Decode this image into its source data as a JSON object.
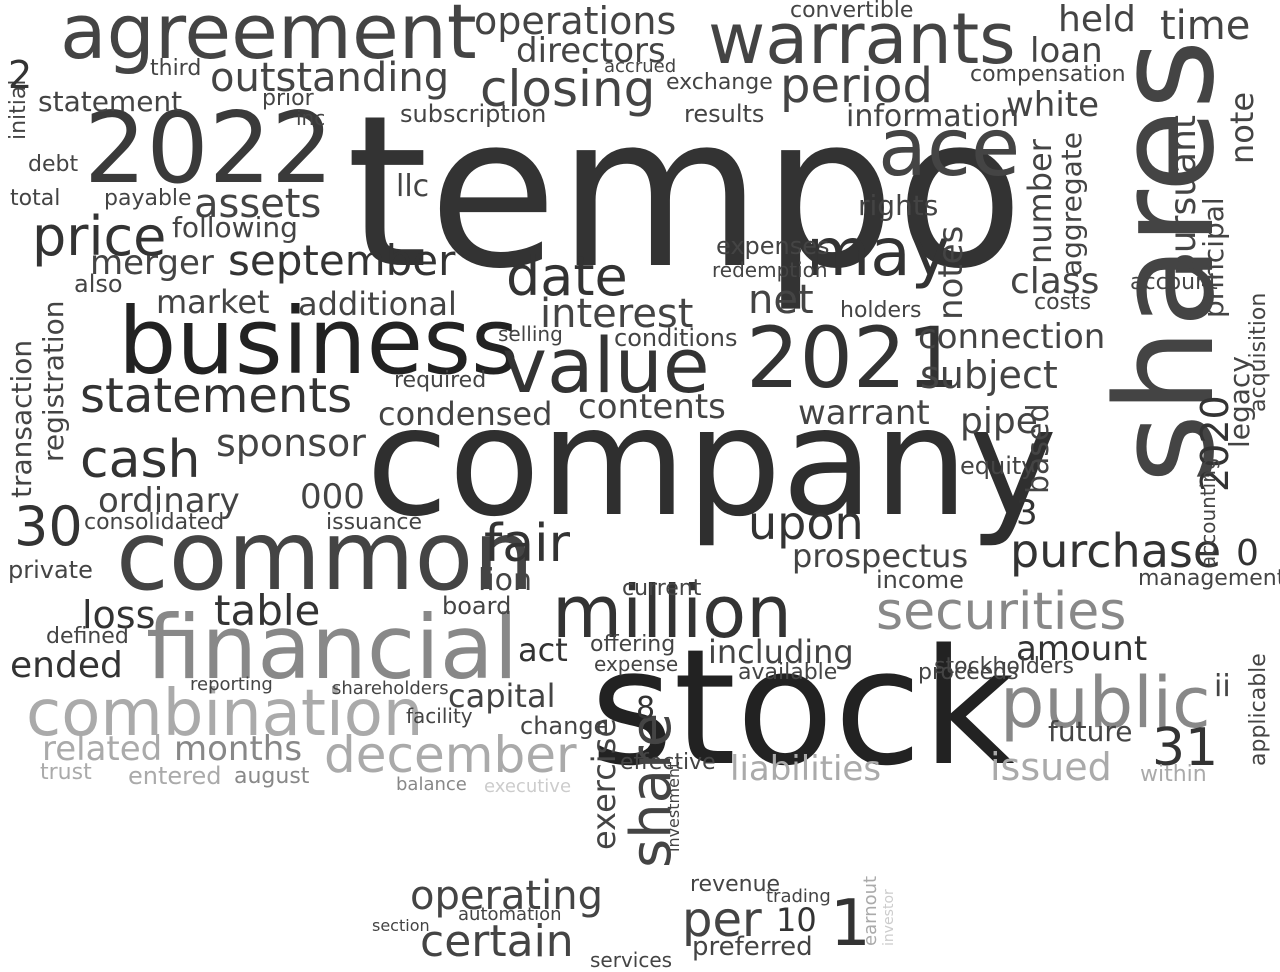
{
  "words": [
    {
      "text": "tempo",
      "color": "#333333"
    },
    {
      "text": "company",
      "color": "#2f2f2f"
    },
    {
      "text": "shares",
      "color": "#444444"
    },
    {
      "text": "stock",
      "color": "#222222"
    },
    {
      "text": "common",
      "color": "#444444"
    },
    {
      "text": "business",
      "color": "#222222"
    },
    {
      "text": "agreement",
      "color": "#444444"
    },
    {
      "text": "warrants",
      "color": "#444444"
    },
    {
      "text": "2022",
      "color": "#3a3a3a"
    },
    {
      "text": "2021",
      "color": "#333333"
    },
    {
      "text": "financial",
      "color": "#888888"
    },
    {
      "text": "combination",
      "color": "#aaaaaa"
    },
    {
      "text": "million",
      "color": "#333333"
    },
    {
      "text": "value",
      "color": "#333333"
    },
    {
      "text": "ace",
      "color": "#444444"
    },
    {
      "text": "may",
      "color": "#333333"
    },
    {
      "text": "public",
      "color": "#888888"
    },
    {
      "text": "securities",
      "color": "#888888"
    },
    {
      "text": "december",
      "color": "#aaaaaa"
    },
    {
      "text": "statements",
      "color": "#333333"
    },
    {
      "text": "cash",
      "color": "#333333"
    },
    {
      "text": "date",
      "color": "#333333"
    },
    {
      "text": "price",
      "color": "#333333"
    },
    {
      "text": "period",
      "color": "#444444"
    },
    {
      "text": "closing",
      "color": "#444444"
    },
    {
      "text": "share",
      "color": "#444444"
    },
    {
      "text": "fair",
      "color": "#333333"
    },
    {
      "text": "purchase",
      "color": "#333333"
    },
    {
      "text": "upon",
      "color": "#333333"
    },
    {
      "text": "certain",
      "color": "#444444"
    },
    {
      "text": "operating",
      "color": "#444444"
    },
    {
      "text": "per",
      "color": "#444444"
    },
    {
      "text": "september",
      "color": "#333333"
    },
    {
      "text": "outstanding",
      "color": "#444444"
    },
    {
      "text": "operations",
      "color": "#444444"
    },
    {
      "text": "directors",
      "color": "#444444"
    },
    {
      "text": "held",
      "color": "#444444"
    },
    {
      "text": "time",
      "color": "#444444"
    },
    {
      "text": "loan",
      "color": "#444444"
    },
    {
      "text": "note",
      "color": "#444444"
    },
    {
      "text": "30",
      "color": "#333333"
    },
    {
      "text": "31",
      "color": "#333333"
    },
    {
      "text": "2020",
      "color": "#333333"
    },
    {
      "text": "assets",
      "color": "#444444"
    },
    {
      "text": "merger",
      "color": "#444444"
    },
    {
      "text": "market",
      "color": "#444444"
    },
    {
      "text": "additional",
      "color": "#444444"
    },
    {
      "text": "interest",
      "color": "#444444"
    },
    {
      "text": "net",
      "color": "#444444"
    },
    {
      "text": "table",
      "color": "#333333"
    },
    {
      "text": "loss",
      "color": "#333333"
    },
    {
      "text": "ended",
      "color": "#333333"
    },
    {
      "text": "sponsor",
      "color": "#444444"
    },
    {
      "text": "ordinary",
      "color": "#444444"
    },
    {
      "text": "000",
      "color": "#444444"
    },
    {
      "text": "condensed",
      "color": "#444444"
    },
    {
      "text": "contents",
      "color": "#444444"
    },
    {
      "text": "warrant",
      "color": "#444444"
    },
    {
      "text": "subject",
      "color": "#444444"
    },
    {
      "text": "connection",
      "color": "#444444"
    },
    {
      "text": "pipe",
      "color": "#444444"
    },
    {
      "text": "class",
      "color": "#444444"
    },
    {
      "text": "number",
      "color": "#444444"
    },
    {
      "text": "information",
      "color": "#444444"
    },
    {
      "text": "white",
      "color": "#444444"
    },
    {
      "text": "notes",
      "color": "#444444"
    },
    {
      "text": "aggregate",
      "color": "#444444"
    },
    {
      "text": "pursuant",
      "color": "#444444"
    },
    {
      "text": "principal",
      "color": "#444444"
    },
    {
      "text": "legacy",
      "color": "#444444"
    },
    {
      "text": "acquisition",
      "color": "#444444"
    },
    {
      "text": "related",
      "color": "#aaaaaa"
    },
    {
      "text": "months",
      "color": "#888888"
    },
    {
      "text": "liabilities",
      "color": "#aaaaaa"
    },
    {
      "text": "issued",
      "color": "#aaaaaa"
    },
    {
      "text": "prospectus",
      "color": "#444444"
    },
    {
      "text": "including",
      "color": "#444444"
    },
    {
      "text": "amount",
      "color": "#333333"
    },
    {
      "text": "capital",
      "color": "#444444"
    },
    {
      "text": "act",
      "color": "#333333"
    },
    {
      "text": "transaction",
      "color": "#444444"
    },
    {
      "text": "registration",
      "color": "#444444"
    },
    {
      "text": "statement",
      "color": "#444444"
    },
    {
      "text": "following",
      "color": "#444444"
    },
    {
      "text": "exercise",
      "color": "#444444"
    },
    {
      "text": "lion",
      "color": "#444444"
    },
    {
      "text": "board",
      "color": "#444444"
    },
    {
      "text": "future",
      "color": "#444444"
    },
    {
      "text": "ii",
      "color": "#444444"
    },
    {
      "text": "equity",
      "color": "#444444"
    },
    {
      "text": "based",
      "color": "#444444"
    },
    {
      "text": "management",
      "color": "#444444"
    },
    {
      "text": "accounting",
      "color": "#444444"
    },
    {
      "text": "applicable",
      "color": "#444444"
    },
    {
      "text": "stockholders",
      "color": "#444444"
    },
    {
      "text": "income",
      "color": "#444444"
    },
    {
      "text": "preferred",
      "color": "#444444"
    },
    {
      "text": "revenue",
      "color": "#444444"
    },
    {
      "text": "consolidated",
      "color": "#444444"
    },
    {
      "text": "issuance",
      "color": "#444444"
    },
    {
      "text": "private",
      "color": "#444444"
    },
    {
      "text": "defined",
      "color": "#444444"
    },
    {
      "text": "also",
      "color": "#444444"
    },
    {
      "text": "debt",
      "color": "#444444"
    },
    {
      "text": "total",
      "color": "#444444"
    },
    {
      "text": "payable",
      "color": "#444444"
    },
    {
      "text": "llc",
      "color": "#444444"
    },
    {
      "text": "rights",
      "color": "#444444"
    },
    {
      "text": "expenses",
      "color": "#444444"
    },
    {
      "text": "redemption",
      "color": "#444444"
    },
    {
      "text": "compensation",
      "color": "#444444"
    },
    {
      "text": "account",
      "color": "#444444"
    },
    {
      "text": "costs",
      "color": "#444444"
    },
    {
      "text": "subscription",
      "color": "#444444"
    },
    {
      "text": "results",
      "color": "#444444"
    },
    {
      "text": "exchange",
      "color": "#444444"
    },
    {
      "text": "prior",
      "color": "#444444"
    },
    {
      "text": "inc",
      "color": "#444444"
    },
    {
      "text": "initial",
      "color": "#444444"
    },
    {
      "text": "holders",
      "color": "#444444"
    },
    {
      "text": "conditions",
      "color": "#444444"
    },
    {
      "text": "selling",
      "color": "#444444"
    },
    {
      "text": "required",
      "color": "#444444"
    },
    {
      "text": "offering",
      "color": "#444444"
    },
    {
      "text": "expense",
      "color": "#444444"
    },
    {
      "text": "available",
      "color": "#444444"
    },
    {
      "text": "proceeds",
      "color": "#444444"
    },
    {
      "text": "current",
      "color": "#444444"
    },
    {
      "text": "change",
      "color": "#444444"
    },
    {
      "text": "effective",
      "color": "#444444"
    },
    {
      "text": "facility",
      "color": "#444444"
    },
    {
      "text": "shareholders",
      "color": "#444444"
    },
    {
      "text": "reporting",
      "color": "#444444"
    },
    {
      "text": "trust",
      "color": "#aaaaaa"
    },
    {
      "text": "entered",
      "color": "#aaaaaa"
    },
    {
      "text": "august",
      "color": "#888888"
    },
    {
      "text": "within",
      "color": "#aaaaaa"
    },
    {
      "text": "executive",
      "color": "#cccccc"
    },
    {
      "text": "balance",
      "color": "#888888"
    },
    {
      "text": "services",
      "color": "#444444"
    },
    {
      "text": "automation",
      "color": "#444444"
    },
    {
      "text": "section",
      "color": "#444444"
    },
    {
      "text": "trading",
      "color": "#444444"
    },
    {
      "text": "investment",
      "color": "#444444"
    },
    {
      "text": "convertible",
      "color": "#444444"
    },
    {
      "text": "accrued",
      "color": "#444444"
    },
    {
      "text": "third",
      "color": "#444444"
    },
    {
      "text": "2",
      "color": "#333333"
    },
    {
      "text": "3",
      "color": "#333333"
    },
    {
      "text": "1",
      "color": "#333333"
    },
    {
      "text": "0",
      "color": "#333333"
    },
    {
      "text": "10",
      "color": "#333333"
    },
    {
      "text": "8",
      "color": "#333333"
    },
    {
      "text": "earnout",
      "color": "#aaaaaa"
    },
    {
      "text": "investor",
      "color": "#cccccc"
    }
  ]
}
